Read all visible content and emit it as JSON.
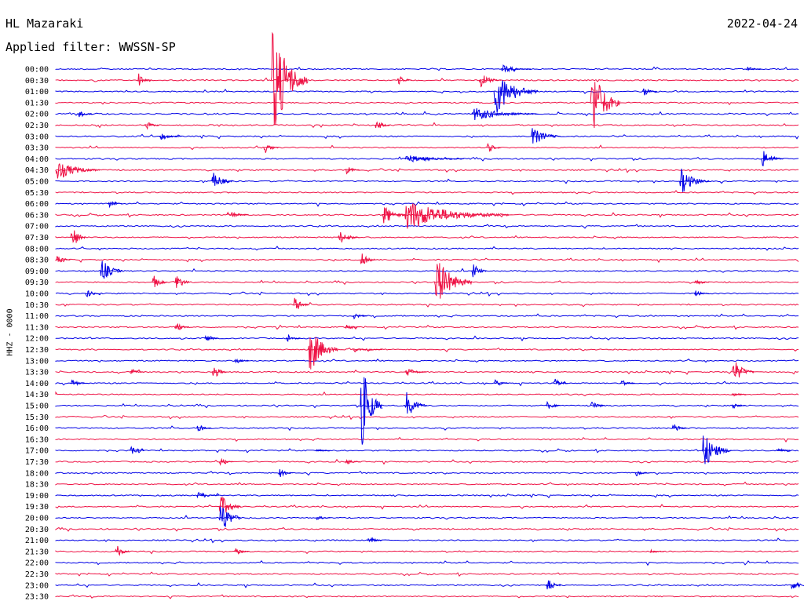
{
  "header": {
    "station": "HL Mazaraki",
    "filter": "Applied filter: WWSSN-SP",
    "date": "2022-04-24"
  },
  "channel_label": "HHZ - 0000",
  "colors": {
    "odd": "#0000e6",
    "even": "#ee1144",
    "text": "#000000"
  },
  "chart_data": {
    "type": "line",
    "title": "HL Mazaraki",
    "subtitle": "Applied filter: WWSSN-SP",
    "ylabel": "HHZ - 0000",
    "line_interval_minutes": 30,
    "grid": false,
    "row_labels": [
      "00:00",
      "00:30",
      "01:00",
      "01:30",
      "02:00",
      "02:30",
      "03:00",
      "03:30",
      "04:00",
      "04:30",
      "05:00",
      "05:30",
      "06:00",
      "06:30",
      "07:00",
      "07:30",
      "08:00",
      "08:30",
      "09:00",
      "09:30",
      "10:00",
      "10:30",
      "11:00",
      "11:30",
      "12:00",
      "12:30",
      "13:00",
      "13:30",
      "14:00",
      "14:30",
      "15:00",
      "15:30",
      "16:00",
      "16:30",
      "17:00",
      "17:30",
      "18:00",
      "18:30",
      "19:00",
      "19:30",
      "20:00",
      "20:30",
      "21:00",
      "21:30",
      "22:00",
      "22:30",
      "23:00",
      "23:30"
    ],
    "events": [
      {
        "row": 0,
        "t": 0.6,
        "amp": 6,
        "dur": 0.04
      },
      {
        "row": 0,
        "t": 0.93,
        "amp": 4,
        "dur": 0.02
      },
      {
        "row": 1,
        "t": 0.11,
        "amp": 14,
        "dur": 0.02
      },
      {
        "row": 1,
        "t": 0.29,
        "amp": 90,
        "dur": 0.05
      },
      {
        "row": 1,
        "t": 0.46,
        "amp": 8,
        "dur": 0.02
      },
      {
        "row": 1,
        "t": 0.57,
        "amp": 12,
        "dur": 0.03
      },
      {
        "row": 2,
        "t": 0.59,
        "amp": 35,
        "dur": 0.06
      },
      {
        "row": 2,
        "t": 0.79,
        "amp": 8,
        "dur": 0.02
      },
      {
        "row": 3,
        "t": 0.72,
        "amp": 60,
        "dur": 0.04
      },
      {
        "row": 4,
        "t": 0.03,
        "amp": 8,
        "dur": 0.02
      },
      {
        "row": 4,
        "t": 0.56,
        "amp": 10,
        "dur": 0.09
      },
      {
        "row": 5,
        "t": 0.12,
        "amp": 8,
        "dur": 0.02
      },
      {
        "row": 5,
        "t": 0.43,
        "amp": 10,
        "dur": 0.02
      },
      {
        "row": 6,
        "t": 0.14,
        "amp": 6,
        "dur": 0.03
      },
      {
        "row": 6,
        "t": 0.64,
        "amp": 15,
        "dur": 0.04
      },
      {
        "row": 7,
        "t": 0.28,
        "amp": 10,
        "dur": 0.02
      },
      {
        "row": 7,
        "t": 0.58,
        "amp": 10,
        "dur": 0.02
      },
      {
        "row": 8,
        "t": 0.47,
        "amp": 6,
        "dur": 0.08
      },
      {
        "row": 8,
        "t": 0.95,
        "amp": 14,
        "dur": 0.03
      },
      {
        "row": 9,
        "t": 0.0,
        "amp": 15,
        "dur": 0.06
      },
      {
        "row": 9,
        "t": 0.39,
        "amp": 8,
        "dur": 0.02
      },
      {
        "row": 10,
        "t": 0.21,
        "amp": 15,
        "dur": 0.03
      },
      {
        "row": 10,
        "t": 0.84,
        "amp": 20,
        "dur": 0.04
      },
      {
        "row": 12,
        "t": 0.07,
        "amp": 6,
        "dur": 0.02
      },
      {
        "row": 13,
        "t": 0.23,
        "amp": 8,
        "dur": 0.03
      },
      {
        "row": 13,
        "t": 0.44,
        "amp": 18,
        "dur": 0.03
      },
      {
        "row": 13,
        "t": 0.47,
        "amp": 22,
        "dur": 0.14
      },
      {
        "row": 15,
        "t": 0.02,
        "amp": 25,
        "dur": 0.02
      },
      {
        "row": 15,
        "t": 0.38,
        "amp": 12,
        "dur": 0.03
      },
      {
        "row": 17,
        "t": 0.0,
        "amp": 8,
        "dur": 0.02
      },
      {
        "row": 17,
        "t": 0.41,
        "amp": 14,
        "dur": 0.02
      },
      {
        "row": 18,
        "t": 0.06,
        "amp": 20,
        "dur": 0.03
      },
      {
        "row": 18,
        "t": 0.56,
        "amp": 14,
        "dur": 0.02
      },
      {
        "row": 19,
        "t": 0.13,
        "amp": 12,
        "dur": 0.02
      },
      {
        "row": 19,
        "t": 0.16,
        "amp": 18,
        "dur": 0.02
      },
      {
        "row": 19,
        "t": 0.51,
        "amp": 40,
        "dur": 0.05
      },
      {
        "row": 19,
        "t": 0.86,
        "amp": 6,
        "dur": 0.02
      },
      {
        "row": 20,
        "t": 0.04,
        "amp": 8,
        "dur": 0.02
      },
      {
        "row": 20,
        "t": 0.86,
        "amp": 6,
        "dur": 0.02
      },
      {
        "row": 21,
        "t": 0.32,
        "amp": 15,
        "dur": 0.02
      },
      {
        "row": 22,
        "t": 0.4,
        "amp": 6,
        "dur": 0.02
      },
      {
        "row": 23,
        "t": 0.16,
        "amp": 8,
        "dur": 0.02
      },
      {
        "row": 23,
        "t": 0.39,
        "amp": 6,
        "dur": 0.02
      },
      {
        "row": 24,
        "t": 0.2,
        "amp": 8,
        "dur": 0.02
      },
      {
        "row": 24,
        "t": 0.31,
        "amp": 8,
        "dur": 0.02
      },
      {
        "row": 25,
        "t": 0.34,
        "amp": 38,
        "dur": 0.04
      },
      {
        "row": 25,
        "t": 0.4,
        "amp": 4,
        "dur": 0.04
      },
      {
        "row": 26,
        "t": 0.24,
        "amp": 6,
        "dur": 0.02
      },
      {
        "row": 27,
        "t": 0.1,
        "amp": 6,
        "dur": 0.02
      },
      {
        "row": 27,
        "t": 0.21,
        "amp": 14,
        "dur": 0.02
      },
      {
        "row": 27,
        "t": 0.47,
        "amp": 8,
        "dur": 0.03
      },
      {
        "row": 27,
        "t": 0.91,
        "amp": 22,
        "dur": 0.03
      },
      {
        "row": 28,
        "t": 0.02,
        "amp": 8,
        "dur": 0.02
      },
      {
        "row": 28,
        "t": 0.59,
        "amp": 8,
        "dur": 0.02
      },
      {
        "row": 28,
        "t": 0.67,
        "amp": 8,
        "dur": 0.02
      },
      {
        "row": 28,
        "t": 0.76,
        "amp": 6,
        "dur": 0.02
      },
      {
        "row": 29,
        "t": 0.91,
        "amp": 4,
        "dur": 0.02
      },
      {
        "row": 30,
        "t": 0.41,
        "amp": 70,
        "dur": 0.03
      },
      {
        "row": 30,
        "t": 0.47,
        "amp": 22,
        "dur": 0.03
      },
      {
        "row": 30,
        "t": 0.66,
        "amp": 8,
        "dur": 0.02
      },
      {
        "row": 30,
        "t": 0.72,
        "amp": 10,
        "dur": 0.02
      },
      {
        "row": 30,
        "t": 0.91,
        "amp": 6,
        "dur": 0.02
      },
      {
        "row": 32,
        "t": 0.19,
        "amp": 8,
        "dur": 0.02
      },
      {
        "row": 32,
        "t": 0.83,
        "amp": 10,
        "dur": 0.02
      },
      {
        "row": 34,
        "t": 0.1,
        "amp": 10,
        "dur": 0.02
      },
      {
        "row": 34,
        "t": 0.35,
        "amp": 4,
        "dur": 0.02
      },
      {
        "row": 34,
        "t": 0.87,
        "amp": 30,
        "dur": 0.04
      },
      {
        "row": 34,
        "t": 0.97,
        "amp": 6,
        "dur": 0.02
      },
      {
        "row": 35,
        "t": 0.22,
        "amp": 6,
        "dur": 0.02
      },
      {
        "row": 35,
        "t": 0.39,
        "amp": 6,
        "dur": 0.02
      },
      {
        "row": 36,
        "t": 0.3,
        "amp": 8,
        "dur": 0.02
      },
      {
        "row": 36,
        "t": 0.78,
        "amp": 6,
        "dur": 0.02
      },
      {
        "row": 38,
        "t": 0.19,
        "amp": 6,
        "dur": 0.03
      },
      {
        "row": 39,
        "t": 0.22,
        "amp": 20,
        "dur": 0.03
      },
      {
        "row": 40,
        "t": 0.22,
        "amp": 30,
        "dur": 0.03
      },
      {
        "row": 40,
        "t": 0.35,
        "amp": 4,
        "dur": 0.02
      },
      {
        "row": 42,
        "t": 0.42,
        "amp": 8,
        "dur": 0.02
      },
      {
        "row": 43,
        "t": 0.08,
        "amp": 12,
        "dur": 0.02
      },
      {
        "row": 43,
        "t": 0.24,
        "amp": 8,
        "dur": 0.02
      },
      {
        "row": 43,
        "t": 0.8,
        "amp": 4,
        "dur": 0.02
      },
      {
        "row": 46,
        "t": 0.66,
        "amp": 14,
        "dur": 0.02
      },
      {
        "row": 46,
        "t": 0.99,
        "amp": 12,
        "dur": 0.02
      }
    ]
  }
}
